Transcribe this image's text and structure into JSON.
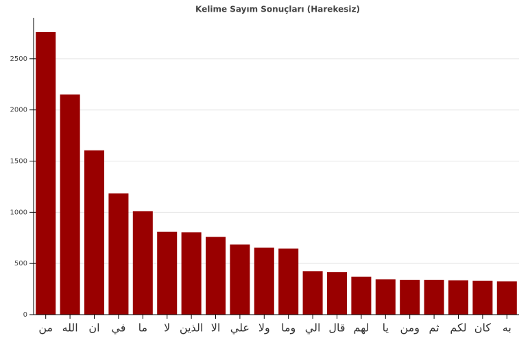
{
  "chart_data": {
    "type": "bar",
    "title": "Kelime Sayım Sonuçları (Harekesiz)",
    "categories": [
      "من",
      "الله",
      "ان",
      "في",
      "ما",
      "لا",
      "الذين",
      "الا",
      "علي",
      "ولا",
      "وما",
      "الي",
      "قال",
      "لهم",
      "يا",
      "ومن",
      "ثم",
      "لكم",
      "كان",
      "به"
    ],
    "values": [
      2760,
      2150,
      1605,
      1185,
      1010,
      810,
      805,
      760,
      685,
      655,
      645,
      425,
      415,
      370,
      345,
      340,
      340,
      335,
      330,
      325
    ],
    "color": "#990000",
    "ylim": [
      0,
      2900
    ],
    "yticks": [
      0,
      500,
      1000,
      1500,
      2000,
      2500
    ],
    "grid": true
  }
}
